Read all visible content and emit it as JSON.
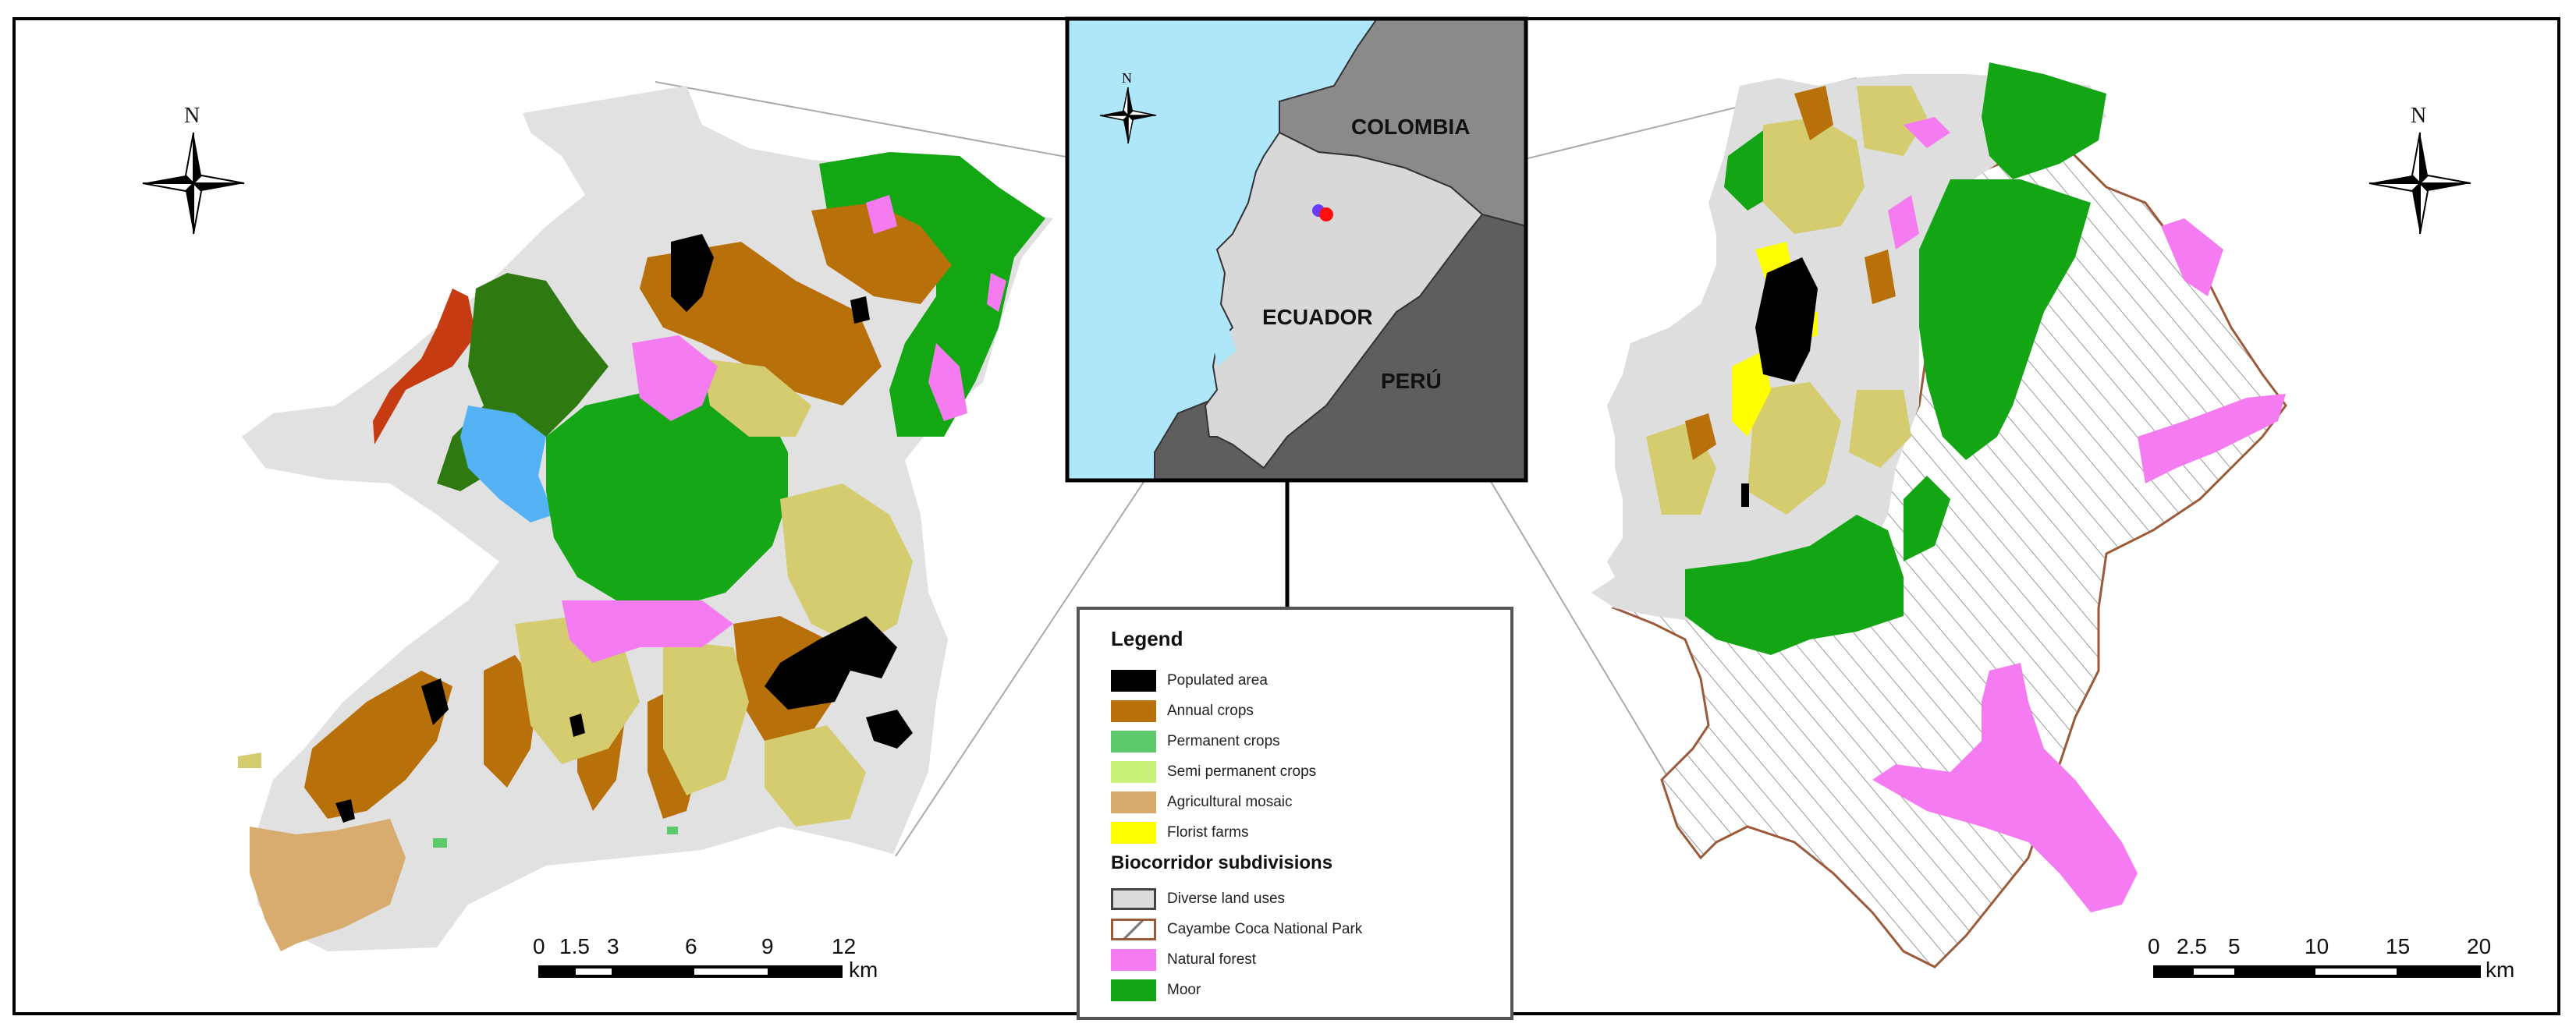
{
  "map": {
    "countries": {
      "colombia": "COLOMBIA",
      "ecuador": "ECUADOR",
      "peru": "PERÚ"
    },
    "north_label": "N"
  },
  "legend": {
    "title": "Legend",
    "items": [
      {
        "label": "Populated area",
        "color": "#000000"
      },
      {
        "label": "Annual crops",
        "color": "#b8700a"
      },
      {
        "label": "Permanent crops",
        "color": "#5cc96a"
      },
      {
        "label": "Semi permanent crops",
        "color": "#c9f27a"
      },
      {
        "label": "Agricultural mosaic",
        "color": "#d7a96a"
      },
      {
        "label": "Florist farms",
        "color": "#ffff00"
      }
    ],
    "subtitle": "Biocorridor subdivisions",
    "subdivisions": [
      {
        "label": "Diverse land uses",
        "color": "#dcdcdc"
      },
      {
        "label": "Cayambe Coca National Park",
        "color": "#ffffff"
      },
      {
        "label": "Natural forest",
        "color": "#f57cf0"
      },
      {
        "label": "Moor",
        "color": "#13a513"
      }
    ]
  },
  "scale_left": {
    "ticks": [
      "0",
      "1.5",
      "3",
      "6",
      "9",
      "12"
    ],
    "unit": "km"
  },
  "scale_right": {
    "ticks": [
      "0",
      "2.5",
      "5",
      "10",
      "15",
      "20"
    ],
    "unit": "km"
  }
}
